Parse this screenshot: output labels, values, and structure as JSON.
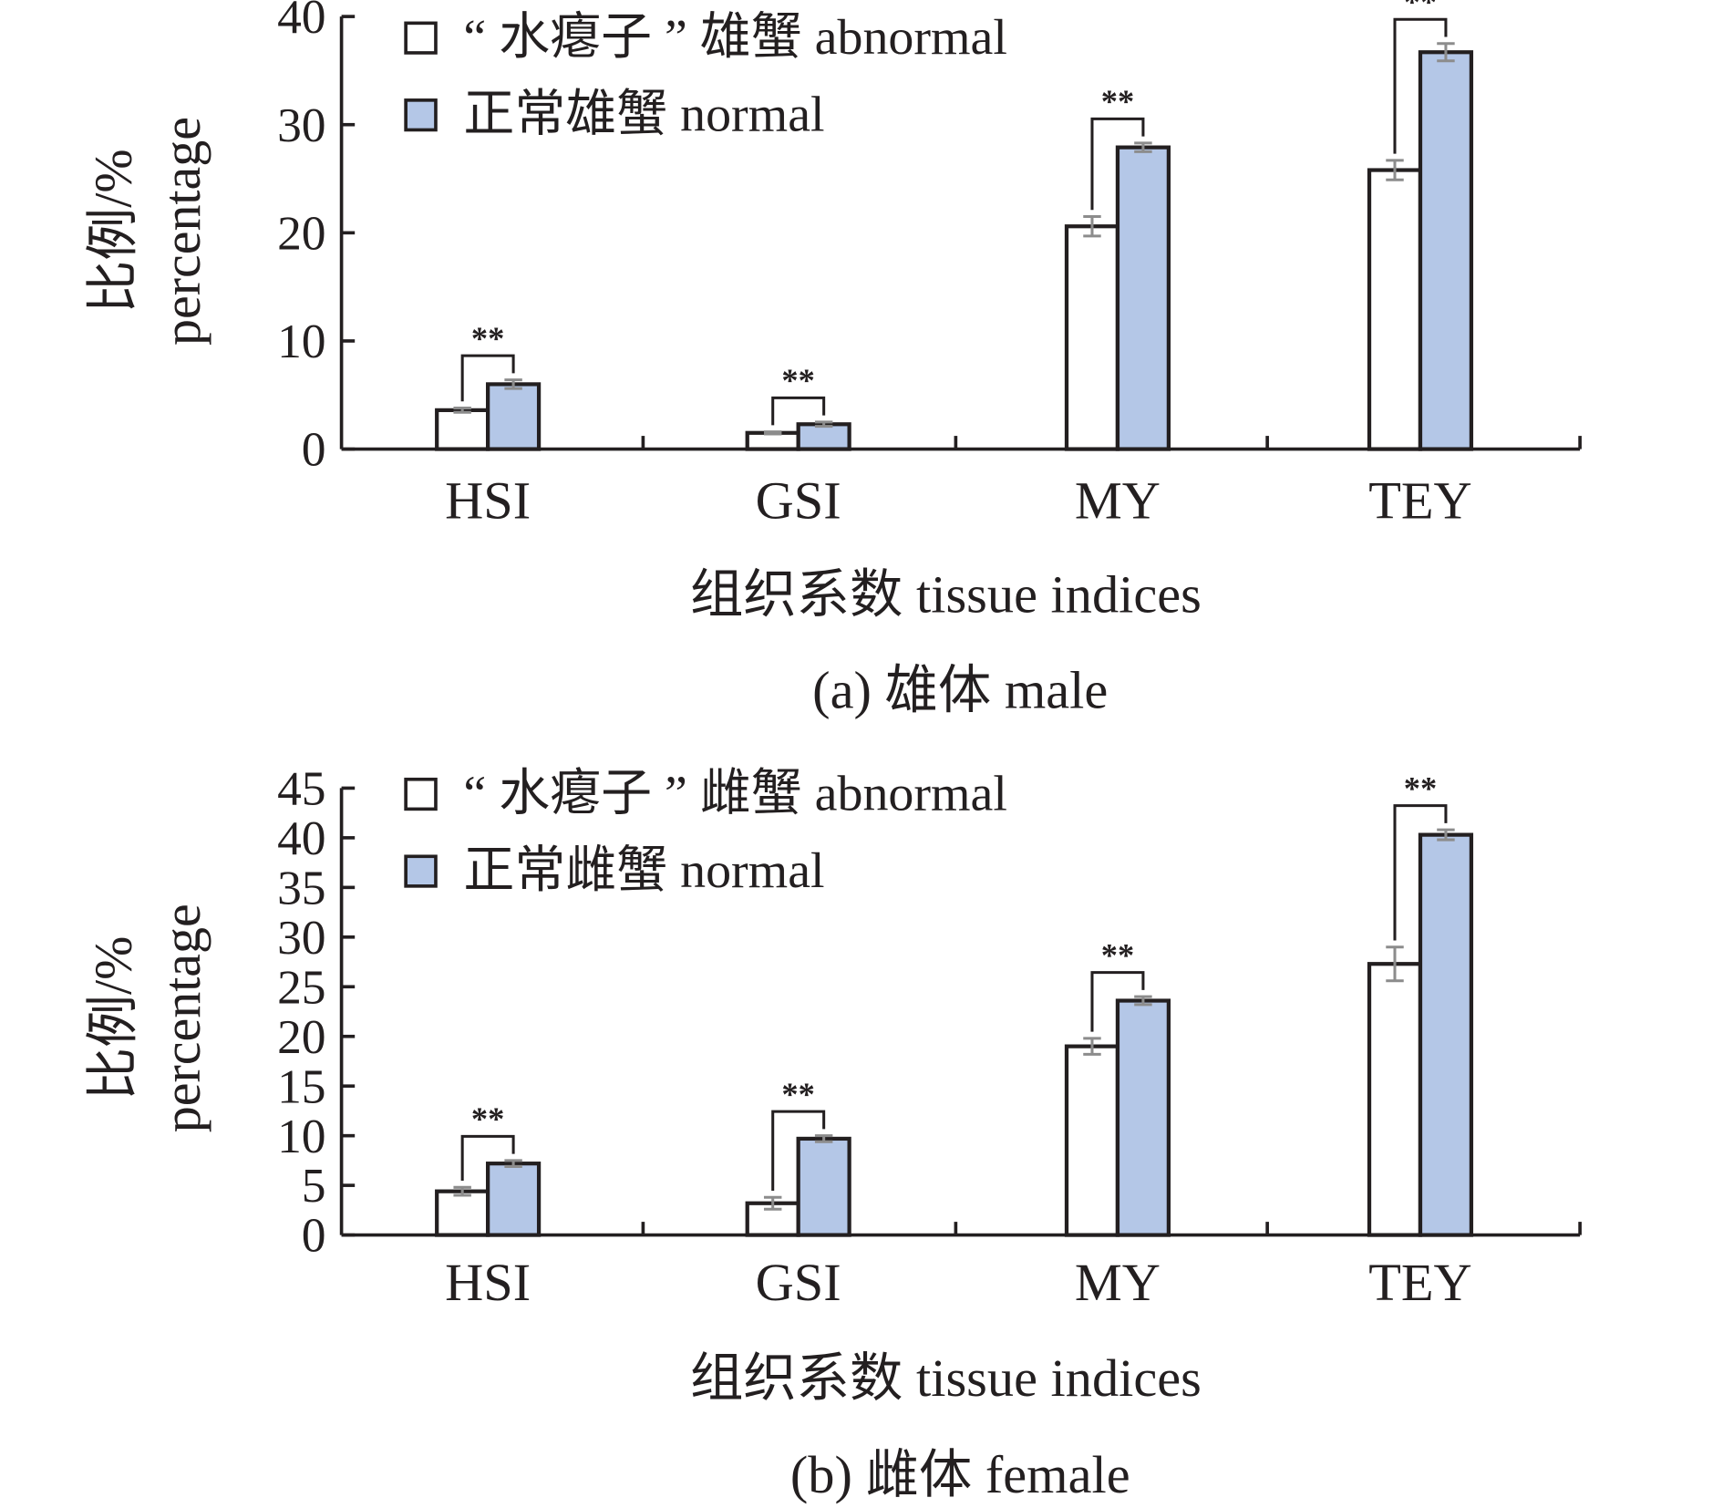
{
  "chart_data": [
    {
      "type": "bar",
      "caption": "(a) 雄体 male",
      "xlabel": "组织系数 tissue indices",
      "ylabel_cn": "比例/%",
      "ylabel_en": "percentage",
      "ylim": [
        0,
        40
      ],
      "yticks": [
        "0",
        "10",
        "20",
        "30",
        "40"
      ],
      "categories": [
        "HSI",
        "GSI",
        "MY",
        "TEY"
      ],
      "series": [
        {
          "name": "“ 水瘪子 ” 雄蟹 abnormal",
          "color": "#ffffff",
          "values": [
            3.6,
            1.5,
            20.6,
            25.8
          ],
          "errors": [
            0.2,
            0.1,
            0.9,
            0.9
          ]
        },
        {
          "name": "正常雄蟹 normal",
          "color": "#b4c7e7",
          "values": [
            6.0,
            2.3,
            27.9,
            36.7
          ],
          "errors": [
            0.4,
            0.2,
            0.4,
            0.8
          ]
        }
      ],
      "significance": [
        "**",
        "**",
        "**",
        "**"
      ]
    },
    {
      "type": "bar",
      "caption": "(b) 雌体 female",
      "xlabel": "组织系数 tissue indices",
      "ylabel_cn": "比例/%",
      "ylabel_en": "percentage",
      "ylim": [
        0,
        45
      ],
      "yticks": [
        "0",
        "5",
        "10",
        "15",
        "20",
        "25",
        "30",
        "35",
        "40",
        "45"
      ],
      "categories": [
        "HSI",
        "GSI",
        "MY",
        "TEY"
      ],
      "series": [
        {
          "name": "“ 水瘪子 ” 雌蟹 abnormal",
          "color": "#ffffff",
          "values": [
            4.4,
            3.2,
            19.0,
            27.3
          ],
          "errors": [
            0.4,
            0.6,
            0.8,
            1.7
          ]
        },
        {
          "name": "正常雌蟹 normal",
          "color": "#b4c7e7",
          "values": [
            7.2,
            9.7,
            23.6,
            40.3
          ],
          "errors": [
            0.3,
            0.3,
            0.4,
            0.5
          ]
        }
      ],
      "significance": [
        "**",
        "**",
        "**",
        "**"
      ]
    }
  ]
}
